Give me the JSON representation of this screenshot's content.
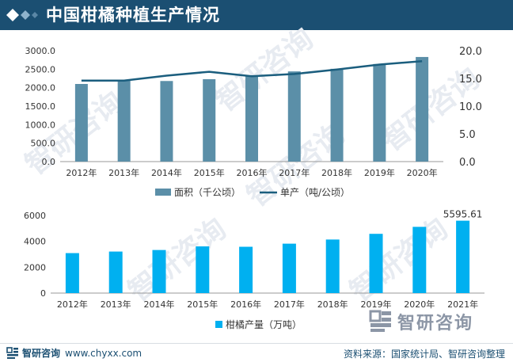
{
  "header": {
    "title": "中国柑橘种植生产情况"
  },
  "watermark": {
    "text": "智研咨询"
  },
  "chart_data": [
    {
      "type": "bar+line",
      "categories": [
        "2012年",
        "2013年",
        "2014年",
        "2015年",
        "2016年",
        "2017年",
        "2018年",
        "2019年",
        "2020年"
      ],
      "series": [
        {
          "name": "面积（千公顷）",
          "kind": "bar",
          "axis": "left",
          "color": "#5b8fa8",
          "values": [
            2100,
            2200,
            2180,
            2230,
            2330,
            2440,
            2510,
            2640,
            2830
          ]
        },
        {
          "name": "单产（吨/公顷）",
          "kind": "line",
          "axis": "right",
          "color": "#1b5e7e",
          "values": [
            14.6,
            14.6,
            15.5,
            16.2,
            15.4,
            15.8,
            16.6,
            17.5,
            18.1
          ]
        }
      ],
      "y_left": {
        "ylim": [
          0,
          3000
        ],
        "ticks": [
          "0.0",
          "500.0",
          "1000.0",
          "1500.0",
          "2000.0",
          "2500.0",
          "3000.0"
        ]
      },
      "y_right": {
        "ylim": [
          0,
          20
        ],
        "ticks": [
          "0.0",
          "5.0",
          "10.0",
          "15.0",
          "20.0"
        ]
      },
      "legend": [
        "面积（千公顷）",
        "单产（吨/公顷）"
      ]
    },
    {
      "type": "bar",
      "categories": [
        "2012年",
        "2013年",
        "2014年",
        "2015年",
        "2016年",
        "2017年",
        "2018年",
        "2019年",
        "2020年",
        "2021年"
      ],
      "series": [
        {
          "name": "柑橘产量（万吨）",
          "color": "#00b0f0",
          "values": [
            3090,
            3210,
            3330,
            3610,
            3580,
            3820,
            4140,
            4580,
            5120,
            5595.61
          ]
        }
      ],
      "ylim": [
        0,
        6000
      ],
      "ticks": [
        "0",
        "2000",
        "4000",
        "6000"
      ],
      "data_labels": {
        "9": "5595.61"
      },
      "legend": [
        "柑橘产量（万吨）"
      ]
    }
  ],
  "logo": {
    "name": "智研咨询"
  },
  "footer": {
    "brand": "智研咨询",
    "site": "www.chyxx.com",
    "source": "资料来源：国家统计局、智研咨询整理"
  }
}
